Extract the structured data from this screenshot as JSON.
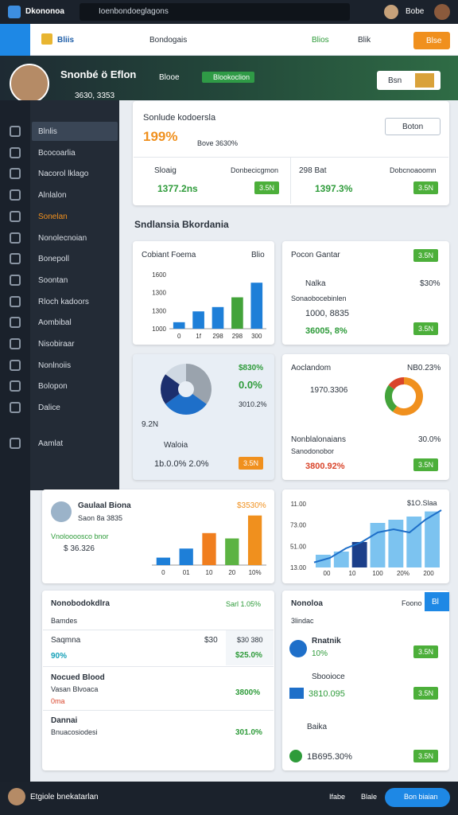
{
  "topbar": {
    "app": "Dkononoa",
    "search": "Ioenbondoeglagons",
    "user": "Bobe"
  },
  "navbar": {
    "brand": "Bliis",
    "search": "Bondogais",
    "link1": "Blios",
    "link2": "Blik",
    "button": "Blse"
  },
  "header": {
    "name": "Snonbé ö Eflon",
    "dropdown": "Blooe",
    "tag": "Blookoclion",
    "meta": "3630, 3353",
    "button": "Bsn"
  },
  "sidebar": {
    "items": [
      "Blnlis",
      "Bcocoarlia",
      "Nacorol lklago",
      "Alnlalon",
      "Sonelan",
      "Nonolecnoian",
      "Bonepoll",
      "Soontan",
      "Rloch kadoors",
      "Aombibal",
      "Nisobiraar",
      "Nonlnoiis",
      "Bolopon",
      "Dalice",
      "Aamlat"
    ],
    "selected": 0,
    "accent": 4
  },
  "summary": {
    "title": "Sonlude kodoersla",
    "value": "199%",
    "note": "Bove 3630%",
    "button": "Boton",
    "left": {
      "label": "Sloaig",
      "caption": "Donbecicgmon",
      "value": "1377.2ns",
      "badge": "3.5N"
    },
    "right": {
      "label": "298 Bat",
      "caption": "Dobcnoaoomn",
      "value": "1397.3%",
      "badge": "3.5N"
    }
  },
  "section_title": "Sndlansia Bkordania",
  "bar_card": {
    "title": "Cobiant Foema",
    "action": "Blio",
    "yticks": [
      "1600",
      "1300",
      "1300",
      "1000"
    ],
    "x": [
      "0",
      "1f",
      "298",
      "298",
      "300"
    ],
    "values": [
      12,
      32,
      40,
      58,
      85
    ],
    "colors": [
      "#1e7fd8",
      "#1e7fd8",
      "#1e7fd8",
      "#43a33a",
      "#1e7fd8"
    ]
  },
  "list_card": {
    "title": "Pocon Gantar",
    "badge": "3.5N",
    "item": "Nalka",
    "item_value": "$30%",
    "caption": "Sonaobocebinlen",
    "value1": "1000, 8835",
    "value2": "36005, 8%",
    "badge2": "3.5N"
  },
  "donut_card": {
    "pct1": "$830%",
    "pct2": "0.0%",
    "pct3": "3010.2%",
    "small": "9.2N",
    "caption": "Waloia",
    "foot": "1b.0.0%  2.0%",
    "badge": "3.5N",
    "segments": [
      35,
      30,
      20,
      15
    ],
    "colors": [
      "#9aa3ad",
      "#1e6fc9",
      "#1c2f6e",
      "#cfd8e2"
    ]
  },
  "ring_card": {
    "title": "Aoclandom",
    "value": "NB0.23%",
    "line": "1970.3306",
    "sub": "Nonblalonaians",
    "subval": "30.0%",
    "sub2": "Sanodonobor",
    "bottom": "3800.92%",
    "badge": "3.5N",
    "segments": [
      60,
      25,
      15
    ],
    "colors": [
      "#f0901e",
      "#43a33a",
      "#d9452b"
    ]
  },
  "low_bar_card": {
    "title": "Gaulaal Biona",
    "sub": "Saon 8a 3835",
    "pct": "$3530%",
    "tag": "Vnoloooosco bnor",
    "value": "$ 36.326",
    "x": [
      "0",
      "01",
      "10",
      "20",
      "10%"
    ],
    "values": [
      14,
      31,
      60,
      50,
      93
    ],
    "colors": [
      "#1e7fd8",
      "#1e7fd8",
      "#f07e1e",
      "#5cb342",
      "#f0901e"
    ]
  },
  "line_card": {
    "top": "$1O.Slaa",
    "yticks": [
      "11.00",
      "73.00",
      "51.00",
      "13.00"
    ],
    "x": [
      "00",
      "10",
      "100",
      "20%",
      "200"
    ],
    "bars": [
      20,
      25,
      40,
      70,
      75,
      80,
      88
    ],
    "line": [
      8,
      15,
      30,
      40,
      55,
      60,
      55,
      75,
      90
    ]
  },
  "table_card": {
    "title": "Nonobodokdlra",
    "header_right": "Sarl 1.05%",
    "sub": "Bamdes",
    "rows": [
      {
        "name": "Saqmna",
        "pct": "90%",
        "num": "$30",
        "right": "$30 380",
        "value": "$25.0%"
      },
      {
        "name": "Nocued Blood",
        "sub": "Vasan Blvoaca",
        "tag": "0ma",
        "value": "3800%"
      },
      {
        "name": "Dannai",
        "sub": "Bnuacosiodesi",
        "value": "301.0%"
      }
    ]
  },
  "people_card": {
    "title": "Nonoloa",
    "link": "Foono",
    "button": "Bl",
    "sub": "3lindac",
    "rows": [
      {
        "name": "Rnatnik",
        "value": "10%",
        "badge": "3.5N"
      },
      {
        "name": "Sbooioce",
        "value": "3810.095",
        "badge": "3.5N"
      },
      {
        "name": "Baika",
        "value": "1B695.30%",
        "badge": "3.5N"
      }
    ]
  },
  "bottombar": {
    "name": "Etgiole bnekatarlan",
    "link1": "Ifabe",
    "link2": "Blale",
    "button": "Bon biaian"
  }
}
